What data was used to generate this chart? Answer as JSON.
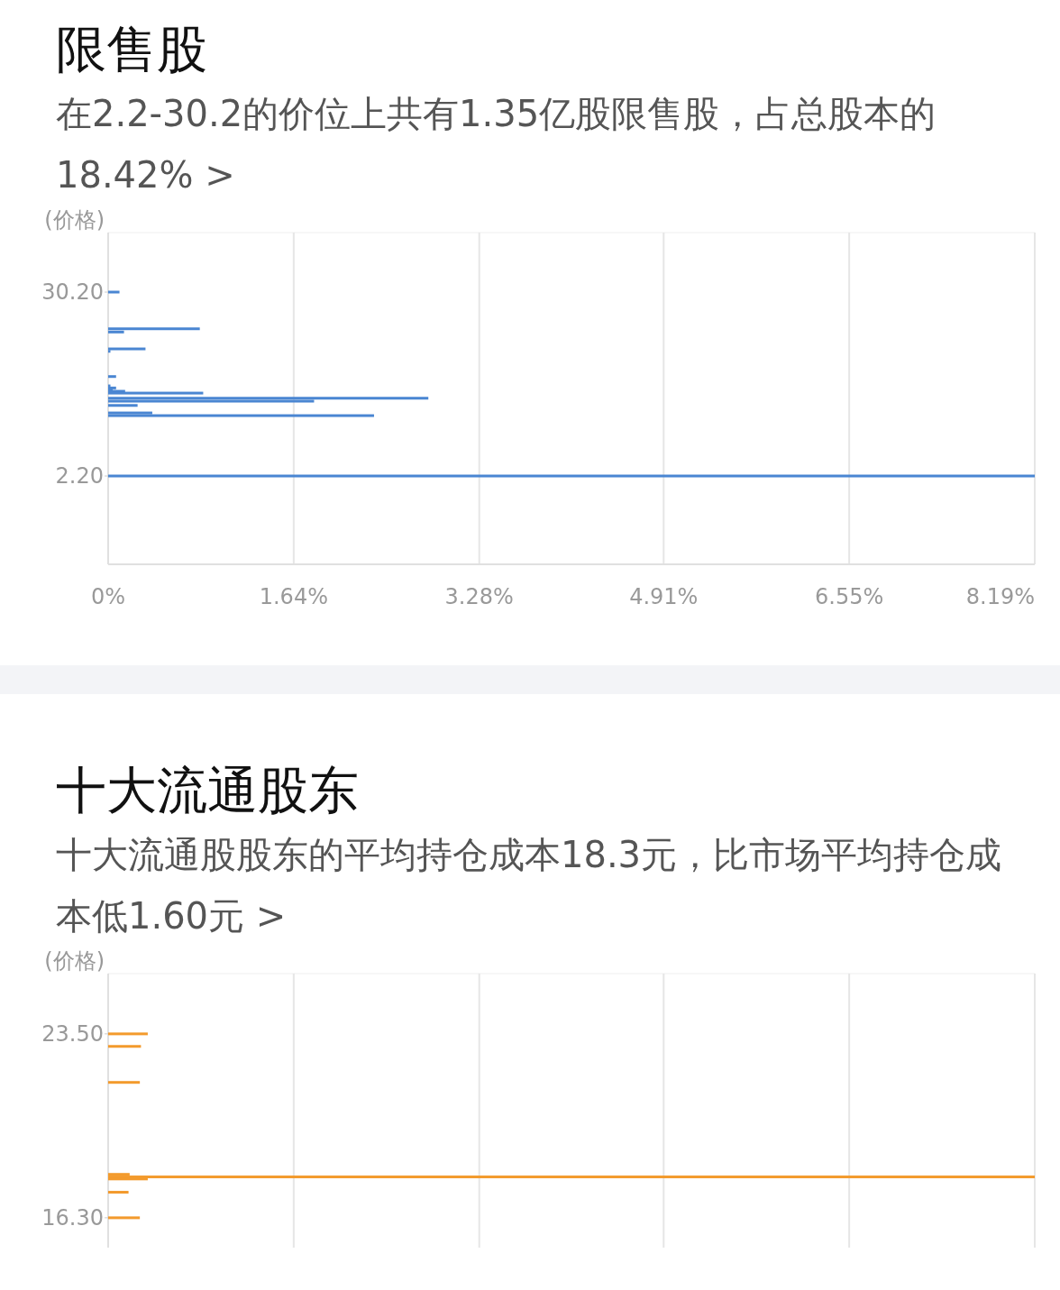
{
  "chart_data": [
    {
      "type": "bar",
      "orientation": "horizontal",
      "title": "限售股",
      "subtitle": "在2.2-30.2的价位上共有1.35亿股限售股，占总股本的18.42% >",
      "ylabel": "(价格)",
      "color": "#4a86d2",
      "x": [
        30.2,
        24.61,
        24.12,
        21.55,
        21.18,
        17.34,
        15.92,
        15.6,
        15.33,
        15.1,
        14.82,
        14.04,
        13.59,
        12.94,
        11.8,
        11.39,
        2.2
      ],
      "values": [
        0.1,
        0.81,
        0.14,
        0.33,
        0.02,
        0.07,
        0.02,
        0.07,
        0.04,
        0.15,
        0.84,
        2.83,
        1.82,
        0.26,
        0.39,
        2.35,
        8.19
      ],
      "xlim": [
        0,
        8.19
      ],
      "xticks": [
        {
          "value": 0,
          "label": "0%"
        },
        {
          "value": 1.64,
          "label": "1.64%"
        },
        {
          "value": 3.28,
          "label": "3.28%"
        },
        {
          "value": 4.91,
          "label": "4.91%"
        },
        {
          "value": 6.55,
          "label": "6.55%"
        },
        {
          "value": 8.19,
          "label": "8.19%"
        }
      ],
      "ylim": [
        -11.25,
        39.26
      ],
      "yticks": [
        {
          "value": 30.2,
          "label": "30.20"
        },
        {
          "value": 2.2,
          "label": "2.20"
        }
      ],
      "grid": "x"
    },
    {
      "type": "bar",
      "orientation": "horizontal",
      "title": "十大流通股东",
      "subtitle": "十大流通股股东的平均持仓成本18.3元，比市场平均持仓成本低1.60元 >",
      "ylabel": "(价格)",
      "color": "#f39a2c",
      "x": [
        23.5,
        23.01,
        21.6,
        18.0,
        17.9,
        17.82,
        17.3,
        16.3
      ],
      "values": [
        0.35,
        0.29,
        0.28,
        0.19,
        8.19,
        0.35,
        0.18,
        0.28
      ],
      "xlim": [
        0,
        8.19
      ],
      "xticks": [
        {
          "value": 0,
          "label": null
        },
        {
          "value": 1.64,
          "label": null
        },
        {
          "value": 3.28,
          "label": null
        },
        {
          "value": 4.91,
          "label": null
        },
        {
          "value": 6.55,
          "label": null
        },
        {
          "value": 8.19,
          "label": null
        }
      ],
      "ylim": [
        14.99,
        25.86
      ],
      "yticks": [
        {
          "value": 23.5,
          "label": "23.50"
        },
        {
          "value": 16.3,
          "label": "16.30"
        }
      ],
      "grid": "x",
      "tick_labels": "y"
    }
  ]
}
